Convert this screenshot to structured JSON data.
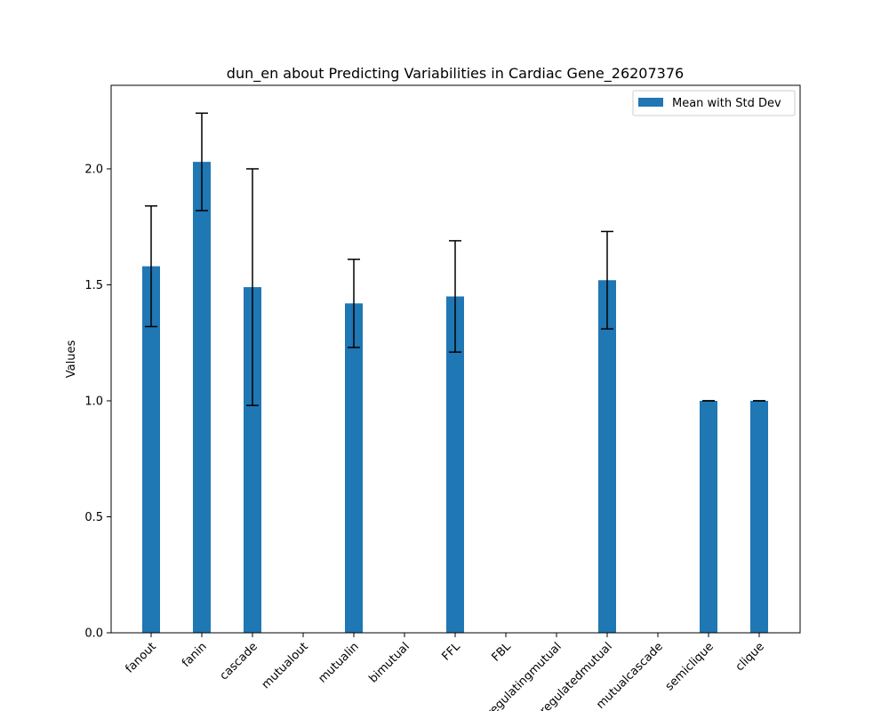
{
  "chart_data": {
    "type": "bar",
    "title": "dun_en about Predicting Variabilities in Cardiac Gene_26207376",
    "xlabel": "",
    "ylabel": "Values",
    "categories": [
      "fanout",
      "fanin",
      "cascade",
      "mutualout",
      "mutualin",
      "bimutual",
      "FFL",
      "FBL",
      "regulatingmutual",
      "regulatedmutual",
      "mutualcascade",
      "semiclique",
      "clique"
    ],
    "series": [
      {
        "name": "Mean with Std Dev",
        "values": [
          1.58,
          2.03,
          1.49,
          0,
          1.42,
          0,
          1.45,
          0,
          0,
          1.52,
          0,
          1.0,
          1.0
        ],
        "errors": [
          0.26,
          0.21,
          0.51,
          0,
          0.19,
          0,
          0.24,
          0,
          0,
          0.21,
          0,
          0,
          0
        ]
      }
    ],
    "ylim": [
      0,
      2.36
    ],
    "yticks": [
      0.0,
      0.5,
      1.0,
      1.5,
      2.0
    ],
    "ytick_labels": [
      "0.0",
      "0.5",
      "1.0",
      "1.5",
      "2.0"
    ],
    "grid": false,
    "legend_position": "upper-right",
    "colors": {
      "bar": "#1f77b4",
      "error": "#000000"
    }
  }
}
